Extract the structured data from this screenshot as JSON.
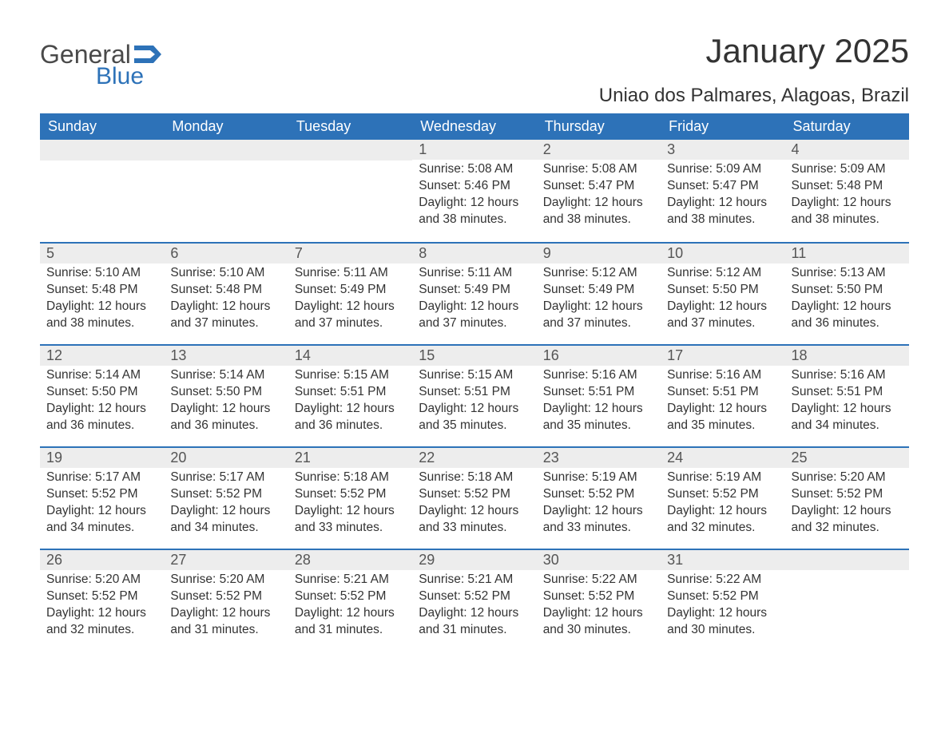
{
  "logo": {
    "general": "General",
    "blue": "Blue"
  },
  "title": "January 2025",
  "location": "Uniao dos Palmares, Alagoas, Brazil",
  "colors": {
    "header_bg": "#2d72b8",
    "header_text": "#ffffff",
    "row_stripe": "#ededed",
    "row_border": "#2d72b8",
    "text": "#333333",
    "logo_gray": "#4a4a4a",
    "logo_blue": "#2d72b8",
    "background": "#ffffff"
  },
  "fonts": {
    "title_pt": 42,
    "location_pt": 24,
    "weekday_pt": 18,
    "daynum_pt": 18,
    "body_pt": 15.5,
    "logo_pt": 32
  },
  "weekdays": [
    "Sunday",
    "Monday",
    "Tuesday",
    "Wednesday",
    "Thursday",
    "Friday",
    "Saturday"
  ],
  "weeks": [
    [
      null,
      null,
      null,
      {
        "n": "1",
        "sr": "Sunrise: 5:08 AM",
        "ss": "Sunset: 5:46 PM",
        "d1": "Daylight: 12 hours",
        "d2": "and 38 minutes."
      },
      {
        "n": "2",
        "sr": "Sunrise: 5:08 AM",
        "ss": "Sunset: 5:47 PM",
        "d1": "Daylight: 12 hours",
        "d2": "and 38 minutes."
      },
      {
        "n": "3",
        "sr": "Sunrise: 5:09 AM",
        "ss": "Sunset: 5:47 PM",
        "d1": "Daylight: 12 hours",
        "d2": "and 38 minutes."
      },
      {
        "n": "4",
        "sr": "Sunrise: 5:09 AM",
        "ss": "Sunset: 5:48 PM",
        "d1": "Daylight: 12 hours",
        "d2": "and 38 minutes."
      }
    ],
    [
      {
        "n": "5",
        "sr": "Sunrise: 5:10 AM",
        "ss": "Sunset: 5:48 PM",
        "d1": "Daylight: 12 hours",
        "d2": "and 38 minutes."
      },
      {
        "n": "6",
        "sr": "Sunrise: 5:10 AM",
        "ss": "Sunset: 5:48 PM",
        "d1": "Daylight: 12 hours",
        "d2": "and 37 minutes."
      },
      {
        "n": "7",
        "sr": "Sunrise: 5:11 AM",
        "ss": "Sunset: 5:49 PM",
        "d1": "Daylight: 12 hours",
        "d2": "and 37 minutes."
      },
      {
        "n": "8",
        "sr": "Sunrise: 5:11 AM",
        "ss": "Sunset: 5:49 PM",
        "d1": "Daylight: 12 hours",
        "d2": "and 37 minutes."
      },
      {
        "n": "9",
        "sr": "Sunrise: 5:12 AM",
        "ss": "Sunset: 5:49 PM",
        "d1": "Daylight: 12 hours",
        "d2": "and 37 minutes."
      },
      {
        "n": "10",
        "sr": "Sunrise: 5:12 AM",
        "ss": "Sunset: 5:50 PM",
        "d1": "Daylight: 12 hours",
        "d2": "and 37 minutes."
      },
      {
        "n": "11",
        "sr": "Sunrise: 5:13 AM",
        "ss": "Sunset: 5:50 PM",
        "d1": "Daylight: 12 hours",
        "d2": "and 36 minutes."
      }
    ],
    [
      {
        "n": "12",
        "sr": "Sunrise: 5:14 AM",
        "ss": "Sunset: 5:50 PM",
        "d1": "Daylight: 12 hours",
        "d2": "and 36 minutes."
      },
      {
        "n": "13",
        "sr": "Sunrise: 5:14 AM",
        "ss": "Sunset: 5:50 PM",
        "d1": "Daylight: 12 hours",
        "d2": "and 36 minutes."
      },
      {
        "n": "14",
        "sr": "Sunrise: 5:15 AM",
        "ss": "Sunset: 5:51 PM",
        "d1": "Daylight: 12 hours",
        "d2": "and 36 minutes."
      },
      {
        "n": "15",
        "sr": "Sunrise: 5:15 AM",
        "ss": "Sunset: 5:51 PM",
        "d1": "Daylight: 12 hours",
        "d2": "and 35 minutes."
      },
      {
        "n": "16",
        "sr": "Sunrise: 5:16 AM",
        "ss": "Sunset: 5:51 PM",
        "d1": "Daylight: 12 hours",
        "d2": "and 35 minutes."
      },
      {
        "n": "17",
        "sr": "Sunrise: 5:16 AM",
        "ss": "Sunset: 5:51 PM",
        "d1": "Daylight: 12 hours",
        "d2": "and 35 minutes."
      },
      {
        "n": "18",
        "sr": "Sunrise: 5:16 AM",
        "ss": "Sunset: 5:51 PM",
        "d1": "Daylight: 12 hours",
        "d2": "and 34 minutes."
      }
    ],
    [
      {
        "n": "19",
        "sr": "Sunrise: 5:17 AM",
        "ss": "Sunset: 5:52 PM",
        "d1": "Daylight: 12 hours",
        "d2": "and 34 minutes."
      },
      {
        "n": "20",
        "sr": "Sunrise: 5:17 AM",
        "ss": "Sunset: 5:52 PM",
        "d1": "Daylight: 12 hours",
        "d2": "and 34 minutes."
      },
      {
        "n": "21",
        "sr": "Sunrise: 5:18 AM",
        "ss": "Sunset: 5:52 PM",
        "d1": "Daylight: 12 hours",
        "d2": "and 33 minutes."
      },
      {
        "n": "22",
        "sr": "Sunrise: 5:18 AM",
        "ss": "Sunset: 5:52 PM",
        "d1": "Daylight: 12 hours",
        "d2": "and 33 minutes."
      },
      {
        "n": "23",
        "sr": "Sunrise: 5:19 AM",
        "ss": "Sunset: 5:52 PM",
        "d1": "Daylight: 12 hours",
        "d2": "and 33 minutes."
      },
      {
        "n": "24",
        "sr": "Sunrise: 5:19 AM",
        "ss": "Sunset: 5:52 PM",
        "d1": "Daylight: 12 hours",
        "d2": "and 32 minutes."
      },
      {
        "n": "25",
        "sr": "Sunrise: 5:20 AM",
        "ss": "Sunset: 5:52 PM",
        "d1": "Daylight: 12 hours",
        "d2": "and 32 minutes."
      }
    ],
    [
      {
        "n": "26",
        "sr": "Sunrise: 5:20 AM",
        "ss": "Sunset: 5:52 PM",
        "d1": "Daylight: 12 hours",
        "d2": "and 32 minutes."
      },
      {
        "n": "27",
        "sr": "Sunrise: 5:20 AM",
        "ss": "Sunset: 5:52 PM",
        "d1": "Daylight: 12 hours",
        "d2": "and 31 minutes."
      },
      {
        "n": "28",
        "sr": "Sunrise: 5:21 AM",
        "ss": "Sunset: 5:52 PM",
        "d1": "Daylight: 12 hours",
        "d2": "and 31 minutes."
      },
      {
        "n": "29",
        "sr": "Sunrise: 5:21 AM",
        "ss": "Sunset: 5:52 PM",
        "d1": "Daylight: 12 hours",
        "d2": "and 31 minutes."
      },
      {
        "n": "30",
        "sr": "Sunrise: 5:22 AM",
        "ss": "Sunset: 5:52 PM",
        "d1": "Daylight: 12 hours",
        "d2": "and 30 minutes."
      },
      {
        "n": "31",
        "sr": "Sunrise: 5:22 AM",
        "ss": "Sunset: 5:52 PM",
        "d1": "Daylight: 12 hours",
        "d2": "and 30 minutes."
      },
      null
    ]
  ]
}
